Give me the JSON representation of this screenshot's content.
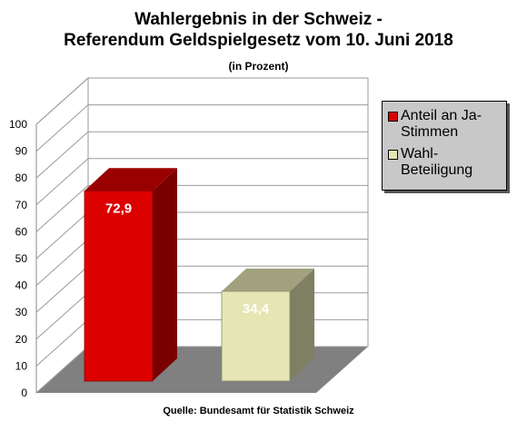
{
  "chart_data": {
    "type": "bar",
    "title": "Wahlergebnis in der Schweiz -",
    "subtitle": "Referendum Geldspielgesetz vom 10. Juni 2018",
    "unit_note": "(in Prozent)",
    "source": "Quelle: Bundesamt für Statistik Schweiz",
    "ylim": [
      0,
      100
    ],
    "yticks": [
      "0",
      "10",
      "20",
      "30",
      "40",
      "50",
      "60",
      "70",
      "80",
      "90",
      "100"
    ],
    "grid": true,
    "legend_position": "right",
    "series": [
      {
        "name": "Anteil an Ja-Stimmen",
        "value": 72.9,
        "label": "72,9",
        "color": "#dd0000",
        "label_color": "#ffffff"
      },
      {
        "name": "Wahl-Beteiligung",
        "value": 34.4,
        "label": "34,4",
        "color": "#e6e6b4",
        "label_color": "#ffffff"
      }
    ]
  },
  "legend": {
    "items": [
      {
        "line1": "Anteil an Ja-",
        "line2": "Stimmen",
        "color": "#dd0000"
      },
      {
        "line1": "Wahl-",
        "line2": "Beteiligung",
        "color": "#e6e6b4"
      }
    ]
  }
}
